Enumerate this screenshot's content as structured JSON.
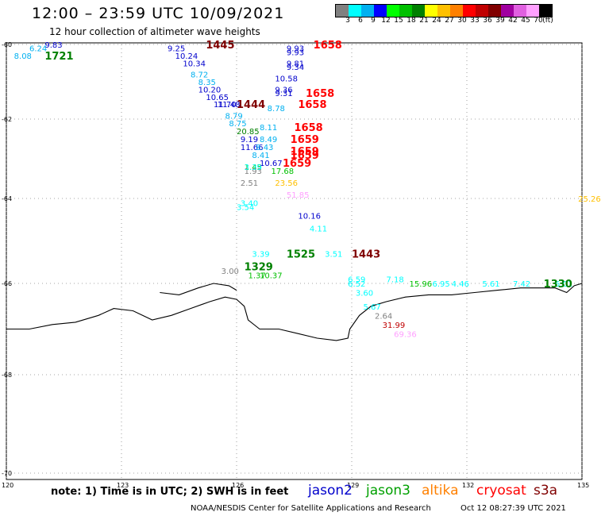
{
  "header": {
    "title": "12:00 – 23:59 UTC 10/09/2021",
    "subtitle": "12 hour collection of altimeter wave heights"
  },
  "legend": {
    "colors": [
      "#808080",
      "#00ffff",
      "#00b0f0",
      "#0000ff",
      "#00ff00",
      "#00c000",
      "#008000",
      "#ffff00",
      "#ffc000",
      "#ff8000",
      "#ff0000",
      "#c00000",
      "#800000",
      "#a000a0",
      "#e060e0",
      "#ffa0ff",
      "#000000"
    ],
    "labels": [
      "3",
      "6",
      "9",
      "12",
      "15",
      "18",
      "21",
      "24",
      "27",
      "30",
      "33",
      "36",
      "39",
      "42",
      "45",
      "70",
      "(ft)"
    ]
  },
  "axes": {
    "lon_ticks": [
      "120",
      "123",
      "126",
      "129",
      "132",
      "135"
    ],
    "lat_ticks": [
      "-60",
      "-62",
      "-64",
      "-66",
      "-68",
      "-70"
    ]
  },
  "observations": [
    {
      "t": "9.83",
      "c": "#0000cc",
      "lon": 121.0,
      "lat": -60.0
    },
    {
      "t": "6.24",
      "c": "#00b0f0",
      "lon": 120.6,
      "lat": -60.1
    },
    {
      "t": "8.08",
      "c": "#00b0f0",
      "lon": 120.2,
      "lat": -60.3
    },
    {
      "t": "9.25",
      "c": "#0000cc",
      "lon": 124.2,
      "lat": -60.1
    },
    {
      "t": "10.24",
      "c": "#0000cc",
      "lon": 124.4,
      "lat": -60.3
    },
    {
      "t": "10.34",
      "c": "#0000cc",
      "lon": 124.6,
      "lat": -60.5
    },
    {
      "t": "8.72",
      "c": "#00b0f0",
      "lon": 124.8,
      "lat": -60.8
    },
    {
      "t": "8.35",
      "c": "#00b0f0",
      "lon": 125.0,
      "lat": -61.0
    },
    {
      "t": "10.20",
      "c": "#0000cc",
      "lon": 125.0,
      "lat": -61.2
    },
    {
      "t": "10.65",
      "c": "#0000cc",
      "lon": 125.2,
      "lat": -61.4
    },
    {
      "t": "11.70",
      "c": "#0000cc",
      "lon": 125.4,
      "lat": -61.6
    },
    {
      "t": "11.48",
      "c": "#0000cc",
      "lon": 125.5,
      "lat": -61.6
    },
    {
      "t": "8.79",
      "c": "#00b0f0",
      "lon": 125.7,
      "lat": -61.9
    },
    {
      "t": "8.75",
      "c": "#00b0f0",
      "lon": 125.8,
      "lat": -62.1
    },
    {
      "t": "20.85",
      "c": "#008000",
      "lon": 126.0,
      "lat": -62.3
    },
    {
      "t": "9.19",
      "c": "#0000cc",
      "lon": 126.1,
      "lat": -62.5
    },
    {
      "t": "11.66",
      "c": "#0000cc",
      "lon": 126.1,
      "lat": -62.7
    },
    {
      "t": "8.41",
      "c": "#00b0f0",
      "lon": 126.4,
      "lat": -62.9
    },
    {
      "t": "1.45",
      "c": "#00c000",
      "lon": 126.2,
      "lat": -63.2
    },
    {
      "t": "1.93",
      "c": "#808080",
      "lon": 126.2,
      "lat": -63.3
    },
    {
      "t": "3.39",
      "c": "#00ffff",
      "lon": 126.2,
      "lat": -63.2
    },
    {
      "t": "2.51",
      "c": "#808080",
      "lon": 126.1,
      "lat": -63.6
    },
    {
      "t": "3.40",
      "c": "#00ffff",
      "lon": 126.1,
      "lat": -64.1
    },
    {
      "t": "3.54",
      "c": "#00ffff",
      "lon": 126.0,
      "lat": -64.2
    },
    {
      "t": "9.93",
      "c": "#0000cc",
      "lon": 127.3,
      "lat": -60.1
    },
    {
      "t": "9.93",
      "c": "#0000cc",
      "lon": 127.3,
      "lat": -60.2
    },
    {
      "t": "9.81",
      "c": "#0000cc",
      "lon": 127.3,
      "lat": -60.5
    },
    {
      "t": "9.34",
      "c": "#0000cc",
      "lon": 127.3,
      "lat": -60.6
    },
    {
      "t": "10.58",
      "c": "#0000cc",
      "lon": 127.0,
      "lat": -60.9
    },
    {
      "t": "9.36",
      "c": "#0000cc",
      "lon": 127.0,
      "lat": -61.2
    },
    {
      "t": "9.31",
      "c": "#0000cc",
      "lon": 127.0,
      "lat": -61.3
    },
    {
      "t": "8.78",
      "c": "#00b0f0",
      "lon": 126.8,
      "lat": -61.7
    },
    {
      "t": "8.11",
      "c": "#00b0f0",
      "lon": 126.6,
      "lat": -62.2
    },
    {
      "t": "8.49",
      "c": "#00b0f0",
      "lon": 126.6,
      "lat": -62.5
    },
    {
      "t": "8.43",
      "c": "#00b0f0",
      "lon": 126.5,
      "lat": -62.7
    },
    {
      "t": "10.67",
      "c": "#0000cc",
      "lon": 126.6,
      "lat": -63.1
    },
    {
      "t": "17.68",
      "c": "#00c000",
      "lon": 126.9,
      "lat": -63.3
    },
    {
      "t": "23.56",
      "c": "#ffc000",
      "lon": 127.0,
      "lat": -63.6
    },
    {
      "t": "51.85",
      "c": "#ffa0ff",
      "lon": 127.3,
      "lat": -63.9
    },
    {
      "t": "10.16",
      "c": "#0000cc",
      "lon": 127.6,
      "lat": -64.4
    },
    {
      "t": "4.11",
      "c": "#00ffff",
      "lon": 127.9,
      "lat": -64.7
    },
    {
      "t": "3.39",
      "c": "#00ffff",
      "lon": 126.4,
      "lat": -65.3
    },
    {
      "t": "3.00",
      "c": "#808080",
      "lon": 125.6,
      "lat": -65.7
    },
    {
      "t": "1.37",
      "c": "#00c000",
      "lon": 126.3,
      "lat": -65.8
    },
    {
      "t": "10.37",
      "c": "#00c000",
      "lon": 126.6,
      "lat": -65.8
    },
    {
      "t": "3.51",
      "c": "#00ffff",
      "lon": 128.3,
      "lat": -65.3
    },
    {
      "t": "6.59",
      "c": "#00ffff",
      "lon": 128.9,
      "lat": -65.9
    },
    {
      "t": "6.52",
      "c": "#00ffff",
      "lon": 128.9,
      "lat": -66.0
    },
    {
      "t": "3.60",
      "c": "#00ffff",
      "lon": 129.1,
      "lat": -66.2
    },
    {
      "t": "5.67",
      "c": "#00ffff",
      "lon": 129.3,
      "lat": -66.5
    },
    {
      "t": "2.64",
      "c": "#808080",
      "lon": 129.6,
      "lat": -66.7
    },
    {
      "t": "31.99",
      "c": "#c00000",
      "lon": 129.8,
      "lat": -66.9
    },
    {
      "t": "69.36",
      "c": "#ffa0ff",
      "lon": 130.1,
      "lat": -67.1
    },
    {
      "t": "7.18",
      "c": "#00ffff",
      "lon": 129.9,
      "lat": -65.9
    },
    {
      "t": "15.96",
      "c": "#00c000",
      "lon": 130.5,
      "lat": -66.0
    },
    {
      "t": "6.95",
      "c": "#00ffff",
      "lon": 131.1,
      "lat": -66.0
    },
    {
      "t": "4.46",
      "c": "#00ffff",
      "lon": 131.6,
      "lat": -66.0
    },
    {
      "t": "5.61",
      "c": "#00ffff",
      "lon": 132.4,
      "lat": -66.0
    },
    {
      "t": "7.42",
      "c": "#00ffff",
      "lon": 133.2,
      "lat": -66.0
    },
    {
      "t": "5.01",
      "c": "#00ffff",
      "lon": 134.3,
      "lat": -66.0
    },
    {
      "t": "25.26",
      "c": "#ffc000",
      "lon": 134.9,
      "lat": -64.0
    }
  ],
  "times": [
    {
      "t": "1721",
      "c": "#008000",
      "lon": 121.0,
      "lat": -60.3
    },
    {
      "t": "1445",
      "c": "#800000",
      "lon": 125.2,
      "lat": -60.0
    },
    {
      "t": "1444",
      "c": "#800000",
      "lon": 126.0,
      "lat": -61.6
    },
    {
      "t": "1658",
      "c": "#ff0000",
      "lon": 128.0,
      "lat": -60.0
    },
    {
      "t": "1658",
      "c": "#ff0000",
      "lon": 127.8,
      "lat": -61.3
    },
    {
      "t": "1658",
      "c": "#ff0000",
      "lon": 127.6,
      "lat": -61.6
    },
    {
      "t": "1658",
      "c": "#ff0000",
      "lon": 127.5,
      "lat": -62.2
    },
    {
      "t": "1659",
      "c": "#ff0000",
      "lon": 127.4,
      "lat": -62.5
    },
    {
      "t": "1659",
      "c": "#ff0000",
      "lon": 127.4,
      "lat": -62.8
    },
    {
      "t": "1659",
      "c": "#ff0000",
      "lon": 127.4,
      "lat": -62.9
    },
    {
      "t": "1659",
      "c": "#ff0000",
      "lon": 127.2,
      "lat": -63.1
    },
    {
      "t": "1525",
      "c": "#008000",
      "lon": 127.3,
      "lat": -65.3
    },
    {
      "t": "1329",
      "c": "#008000",
      "lon": 126.2,
      "lat": -65.6
    },
    {
      "t": "1443",
      "c": "#800000",
      "lon": 129.0,
      "lat": -65.3
    },
    {
      "t": "1330",
      "c": "#008000",
      "lon": 134.0,
      "lat": -66.0
    }
  ],
  "footer": {
    "note": "note:  1) Time is in UTC;  2) SWH is in feet",
    "satellites": [
      {
        "name": "jason2",
        "color": "#0000cc"
      },
      {
        "name": "jason3",
        "color": "#00a000"
      },
      {
        "name": "altika",
        "color": "#ff8000"
      },
      {
        "name": "cryosat",
        "color": "#ff0000"
      },
      {
        "name": "s3a",
        "color": "#800000"
      }
    ],
    "credit": "NOAA/NESDIS Center for Satellite Applications and Research",
    "generated": "Oct 12 08:27:39 UTC 2021"
  },
  "coastline": [
    [
      120.0,
      -67.0
    ],
    [
      120.6,
      -67.0
    ],
    [
      121.2,
      -66.9
    ],
    [
      121.8,
      -66.85
    ],
    [
      122.4,
      -66.7
    ],
    [
      122.8,
      -66.55
    ],
    [
      123.3,
      -66.6
    ],
    [
      123.8,
      -66.8
    ],
    [
      124.3,
      -66.7
    ],
    [
      124.8,
      -66.55
    ],
    [
      125.3,
      -66.4
    ],
    [
      125.7,
      -66.3
    ],
    [
      126.0,
      -66.35
    ],
    [
      126.2,
      -66.5
    ],
    [
      126.3,
      -66.8
    ],
    [
      126.6,
      -67.0
    ],
    [
      127.1,
      -67.0
    ],
    [
      127.6,
      -67.1
    ],
    [
      128.1,
      -67.2
    ],
    [
      128.6,
      -67.25
    ],
    [
      128.9,
      -67.2
    ],
    [
      128.95,
      -67.0
    ],
    [
      129.2,
      -66.7
    ],
    [
      129.5,
      -66.5
    ],
    [
      129.9,
      -66.4
    ],
    [
      130.4,
      -66.3
    ],
    [
      131.0,
      -66.25
    ],
    [
      131.6,
      -66.25
    ],
    [
      132.2,
      -66.2
    ],
    [
      132.8,
      -66.15
    ],
    [
      133.4,
      -66.1
    ],
    [
      133.9,
      -66.1
    ],
    [
      134.3,
      -66.1
    ],
    [
      134.6,
      -66.2
    ],
    [
      134.8,
      -66.05
    ],
    [
      135.0,
      -66.0
    ]
  ],
  "iceshelf": [
    [
      124.0,
      -66.2
    ],
    [
      124.5,
      -66.25
    ],
    [
      125.0,
      -66.1
    ],
    [
      125.4,
      -66.0
    ],
    [
      125.8,
      -66.05
    ],
    [
      126.0,
      -66.15
    ]
  ]
}
